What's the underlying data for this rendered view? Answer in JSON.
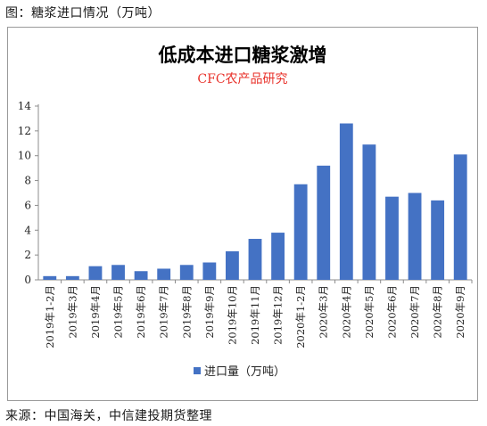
{
  "figure_caption": "图：糖浆进口情况（万吨）",
  "source_note": "来源：中国海关，中信建投期货整理",
  "chart_data": {
    "type": "bar",
    "title": "低成本进口糖浆激增",
    "subtitle": "CFC农产品研究",
    "xlabel": "",
    "ylabel": "",
    "ylim": [
      0,
      14
    ],
    "yticks": [
      0,
      2,
      4,
      6,
      8,
      10,
      12,
      14
    ],
    "grid": false,
    "legend_position": "bottom",
    "categories": [
      "2019年1-2月",
      "2019年3月",
      "2019年4月",
      "2019年5月",
      "2019年6月",
      "2019年7月",
      "2019年8月",
      "2019年9月",
      "2019年10月",
      "2019年11月",
      "2019年12月",
      "2020年1-2月",
      "2020年3月",
      "2020年4月",
      "2020年5月",
      "2020年6月",
      "2020年7月",
      "2020年8月",
      "2020年9月"
    ],
    "series": [
      {
        "name": "进口量（万吨）",
        "color": "#4472C4",
        "values": [
          0.3,
          0.3,
          1.1,
          1.2,
          0.7,
          0.9,
          1.2,
          1.4,
          2.3,
          3.3,
          3.8,
          7.7,
          9.2,
          12.6,
          10.9,
          6.7,
          7.0,
          6.4,
          10.1
        ]
      }
    ],
    "title_color": "#000000",
    "subtitle_color": "#e8312a",
    "axis_color": "#8c8c8c"
  }
}
